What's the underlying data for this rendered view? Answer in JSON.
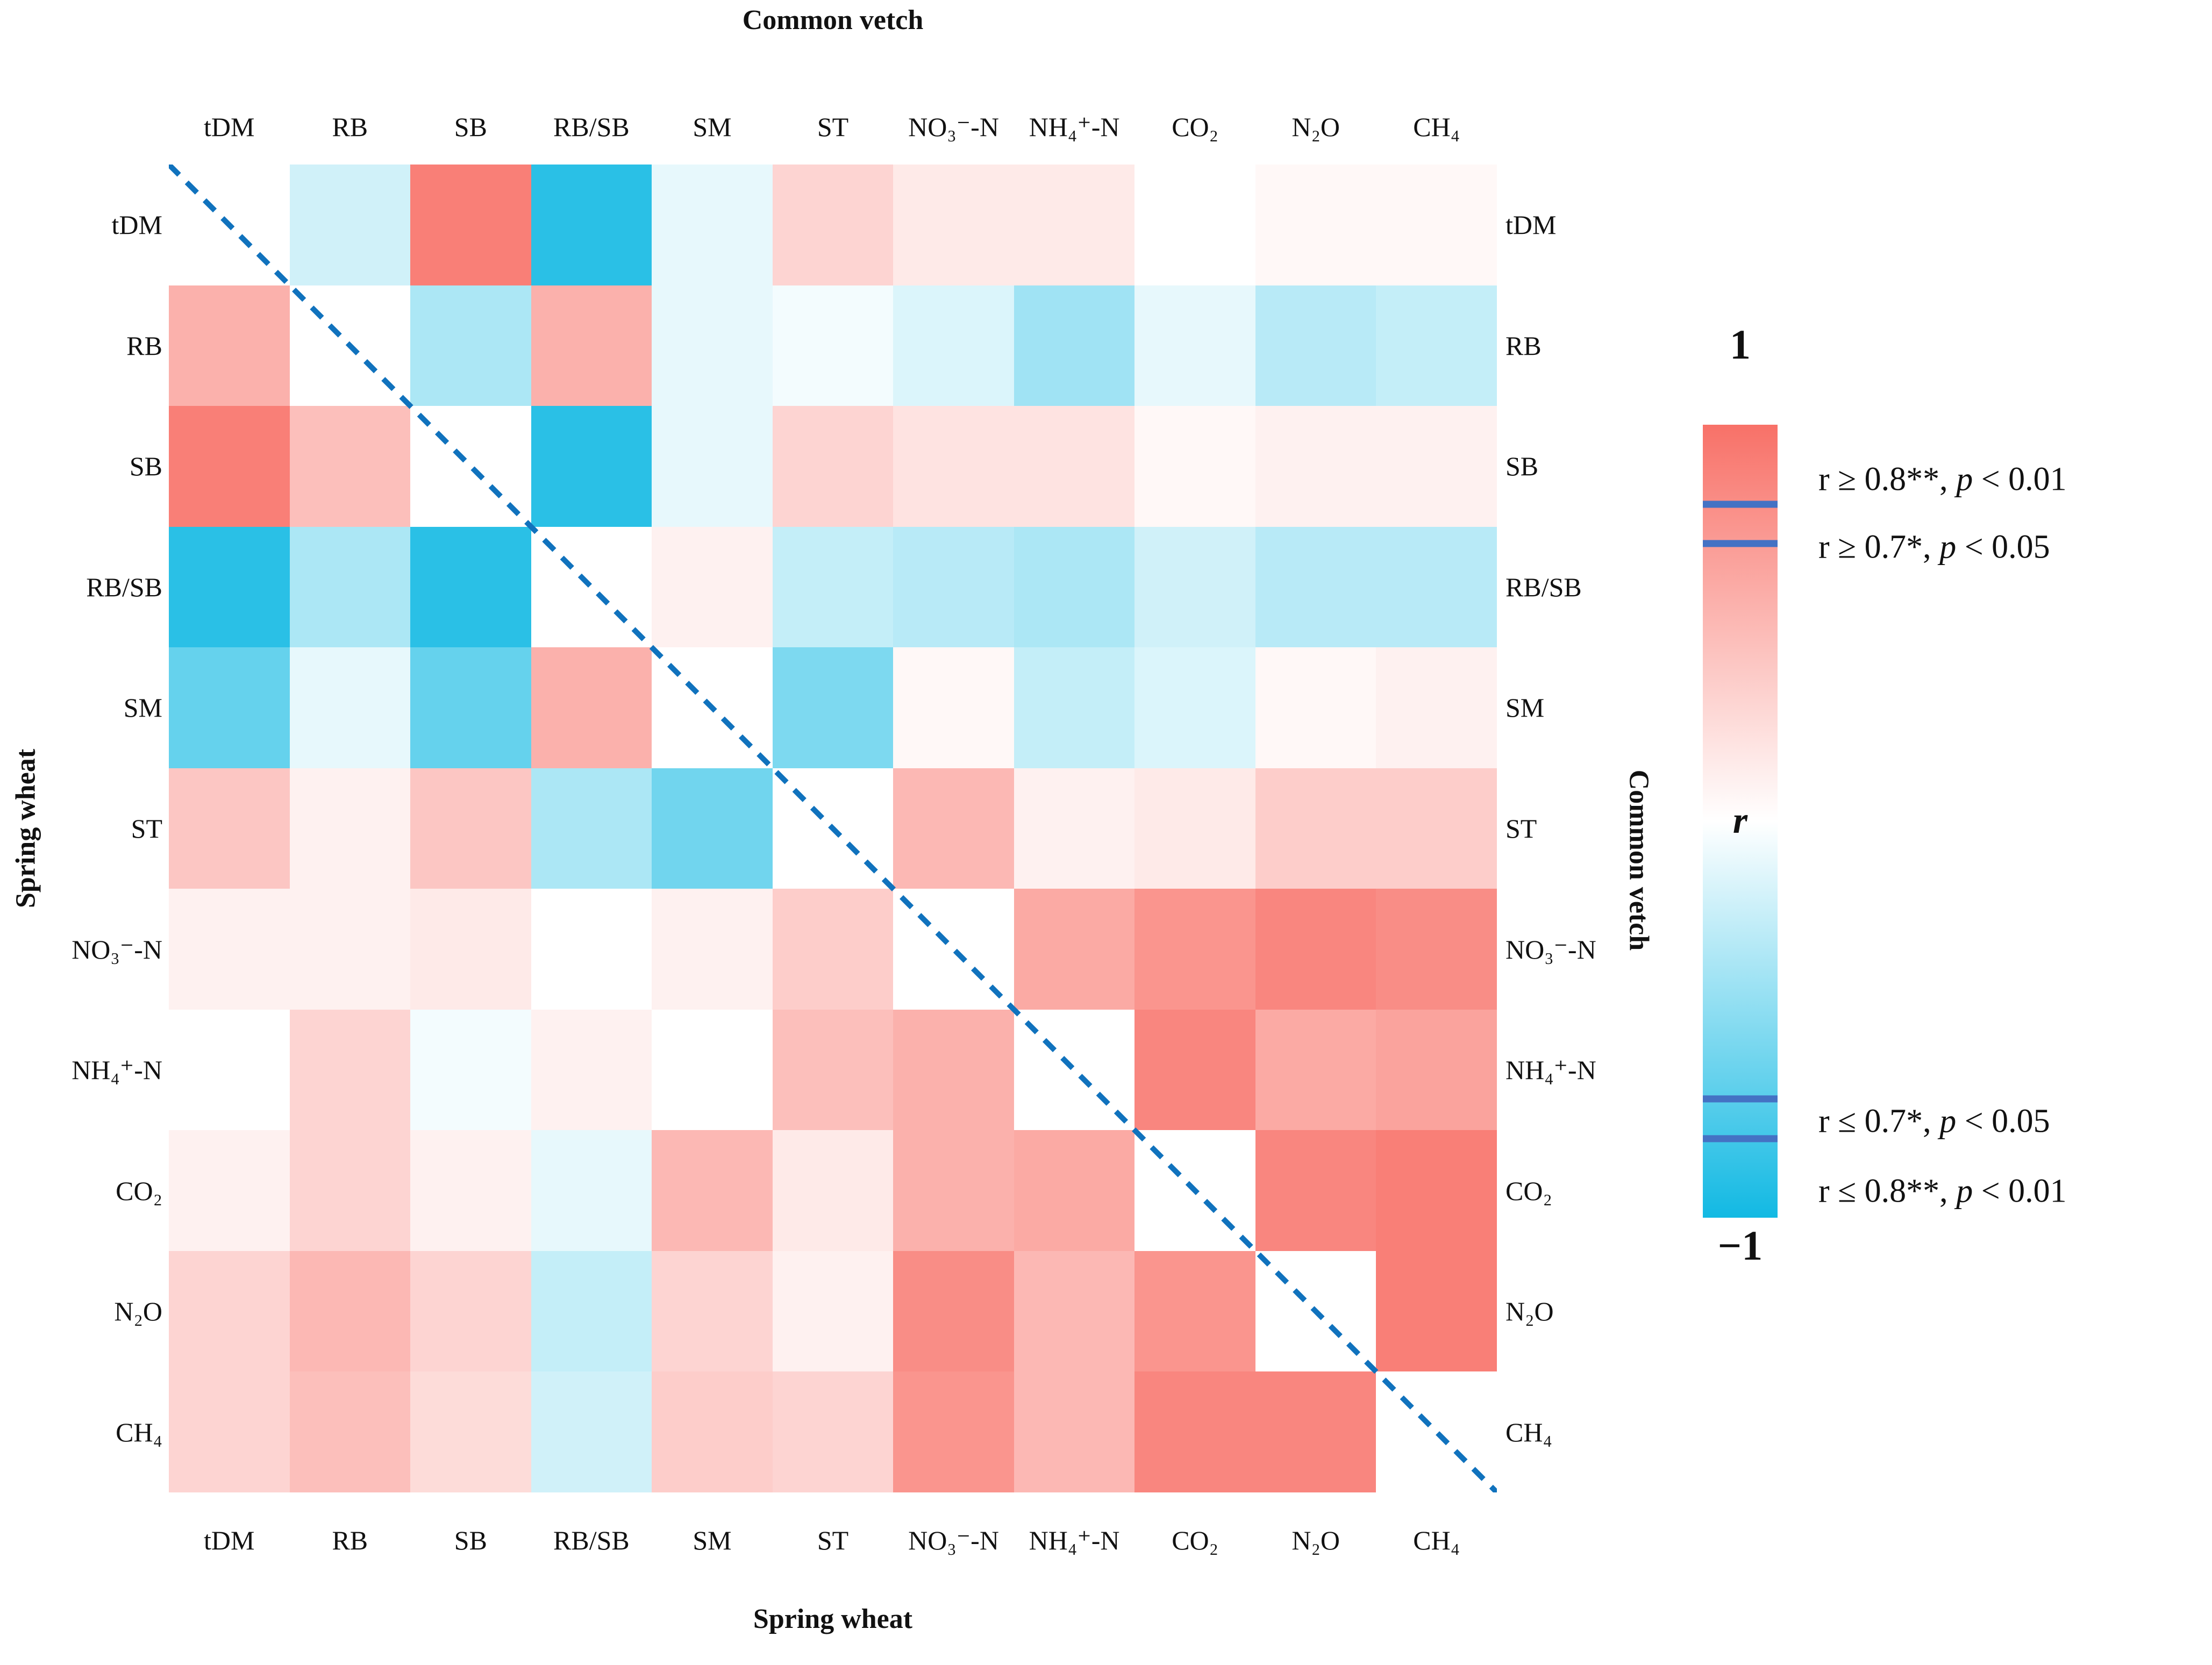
{
  "figure": {
    "top_title": "Common vetch",
    "bottom_title": "Spring wheat",
    "left_axis_title": "Spring wheat",
    "right_axis_title": "Common vetch"
  },
  "legend": {
    "top_value": "1",
    "bottom_value": "−1",
    "bar_label": "r",
    "entries": [
      {
        "r_part": "r ≥ 0.8**, ",
        "p_part": "p",
        "rest_part": " < 0.01"
      },
      {
        "r_part": "r ≥ 0.7*, ",
        "p_part": "p",
        "rest_part": " < 0.05"
      },
      {
        "r_part": "r ≤ 0.7*, ",
        "p_part": "p",
        "rest_part": " < 0.05"
      },
      {
        "r_part": "r ≤ 0.8**, ",
        "p_part": "p",
        "rest_part": " < 0.01"
      }
    ]
  },
  "chart_data": {
    "type": "heatmap",
    "title": "Pearson correlation matrix (upper triangle: Common vetch, lower triangle: Spring wheat)",
    "variables": [
      "tDM",
      "RB",
      "SB",
      "RB/SB",
      "SM",
      "ST",
      "NO₃⁻-N",
      "NH₄⁺-N",
      "CO₂",
      "N₂O",
      "CH₄"
    ],
    "upper_triangle_group": "Common vetch",
    "lower_triangle_group": "Spring wheat",
    "scale": {
      "min": -1,
      "max": 1,
      "positive_color": "#f87168",
      "negative_color": "#12b9e3",
      "neutral_color": "#ffffff",
      "marker_values": [
        0.8,
        0.7,
        -0.7,
        -0.8
      ],
      "marker_line_color": "#4472c4"
    },
    "diagonal_line_color": "#1072bd",
    "matrix": [
      [
        null,
        -0.2,
        0.9,
        -0.9,
        -0.1,
        0.3,
        0.15,
        0.15,
        0,
        0.05,
        0.05
      ],
      [
        0.55,
        null,
        -0.35,
        0.55,
        -0.1,
        -0.05,
        -0.15,
        -0.4,
        -0.1,
        -0.3,
        -0.25
      ],
      [
        0.9,
        0.45,
        null,
        -0.9,
        -0.1,
        0.3,
        0.2,
        0.2,
        0.05,
        0.1,
        0.1
      ],
      [
        -0.9,
        -0.35,
        -0.9,
        null,
        0.1,
        -0.25,
        -0.3,
        -0.35,
        -0.2,
        -0.3,
        -0.3
      ],
      [
        -0.65,
        -0.1,
        -0.65,
        0.55,
        null,
        -0.55,
        0.05,
        -0.25,
        -0.15,
        0.05,
        0.1
      ],
      [
        0.4,
        0.1,
        0.4,
        -0.35,
        -0.6,
        null,
        0.5,
        0.1,
        0.15,
        0.35,
        0.35
      ],
      [
        0.1,
        0.1,
        0.15,
        0,
        0.1,
        0.35,
        null,
        0.6,
        0.75,
        0.85,
        0.8
      ],
      [
        0,
        0.3,
        -0.05,
        0.1,
        0,
        0.45,
        0.55,
        null,
        0.85,
        0.6,
        0.65
      ],
      [
        0.1,
        0.3,
        0.1,
        -0.1,
        0.5,
        0.15,
        0.55,
        0.6,
        null,
        0.85,
        0.9
      ],
      [
        0.3,
        0.5,
        0.3,
        -0.25,
        0.3,
        0.1,
        0.8,
        0.5,
        0.75,
        null,
        0.9
      ],
      [
        0.3,
        0.45,
        0.25,
        -0.2,
        0.35,
        0.3,
        0.75,
        0.5,
        0.85,
        0.85,
        null
      ]
    ]
  }
}
